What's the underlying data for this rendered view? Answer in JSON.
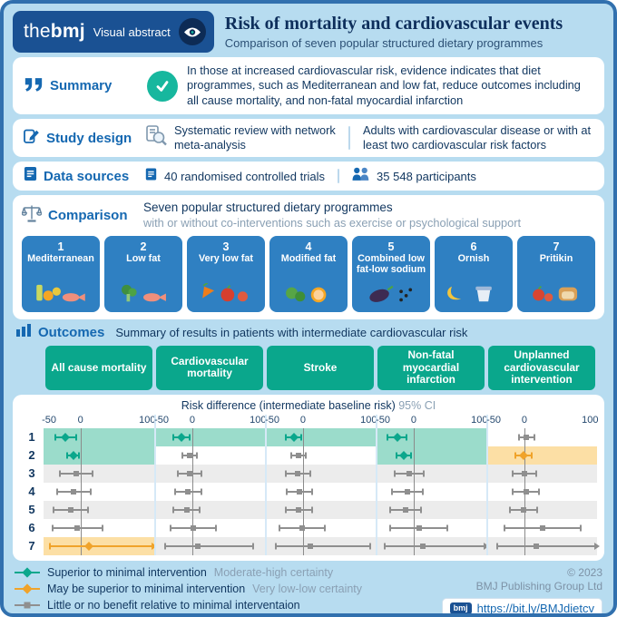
{
  "header": {
    "logo_the": "the",
    "logo_bmj": "bmj",
    "logo_label": "Visual abstract",
    "title": "Risk of mortality and cardiovascular events",
    "subtitle": "Comparison of seven popular structured dietary programmes"
  },
  "summary": {
    "label": "Summary",
    "text": "In those at increased cardiovascular risk, evidence indicates that diet programmes, such as Mediterranean and low fat, reduce outcomes including all cause mortality, and non-fatal myocardial infarction"
  },
  "study_design": {
    "label": "Study design",
    "method": "Systematic review with network meta-analysis",
    "population": "Adults with cardiovascular disease or with at least two cardiovascular risk factors"
  },
  "data_sources": {
    "label": "Data sources",
    "trials": "40 randomised controlled trials",
    "participants": "35 548 participants"
  },
  "comparison": {
    "label": "Comparison",
    "line1": "Seven popular structured dietary programmes",
    "line2": "with or without co-interventions such as exercise or psychological support",
    "diets": [
      {
        "num": "1",
        "name": "Mediterranean"
      },
      {
        "num": "2",
        "name": "Low fat"
      },
      {
        "num": "3",
        "name": "Very low fat"
      },
      {
        "num": "4",
        "name": "Modified fat"
      },
      {
        "num": "5",
        "name": "Combined low fat-low sodium"
      },
      {
        "num": "6",
        "name": "Ornish"
      },
      {
        "num": "7",
        "name": "Pritikin"
      }
    ]
  },
  "outcomes": {
    "label": "Outcomes",
    "subtitle": "Summary of results in patients with intermediate cardiovascular risk",
    "axis_title": "Risk difference (intermediate baseline risk)",
    "axis_ci": "95% CI"
  },
  "legend": [
    {
      "text": "Superior to minimal intervention",
      "certainty": "Moderate-high certainty"
    },
    {
      "text": "May be superior to minimal intervention",
      "certainty": "Very low-low certainty"
    },
    {
      "text": "Little or no benefit relative to minimal interventaion",
      "certainty": ""
    }
  ],
  "footer": {
    "copyright1": "© 2023",
    "copyright2": "BMJ Publishing Group Ltd",
    "link_logo": "bmj",
    "link": "https://bit.ly/BMJdietcv"
  },
  "colors": {
    "teal": "#0ba78c",
    "orange": "#f0a32a",
    "gray": "#8f8f8f",
    "highlight_teal": "#9bdccb",
    "highlight_orange": "#fcdfa5",
    "stripe": "#ececec",
    "header_blue": "#1a5193",
    "accent_blue": "#1568b1",
    "diet_card_blue": "#2f80c2",
    "chip_teal": "#0aa78c",
    "background_blue": "#b7dcf0"
  },
  "chart_data": {
    "type": "forest",
    "title": "Summary of results in patients with intermediate cardiovascular risk",
    "xlabel": "Risk difference (intermediate baseline risk), 95% CI",
    "xlim": [
      -50,
      100
    ],
    "ticks": [
      {
        "v": -50,
        "label": "-50"
      },
      {
        "v": 0,
        "label": "0"
      },
      {
        "v": 100,
        "label": "100"
      }
    ],
    "columns": [
      "All cause mortality",
      "Cardiovascular mortality",
      "Stroke",
      "Non-fatal myocardial infarction",
      "Unplanned cardiovascular intervention"
    ],
    "legend_types": {
      "superior": "Superior to minimal intervention (moderate-high certainty)",
      "maybe": "May be superior to minimal intervention (very low-low certainty)",
      "none": "Little or no benefit relative to minimal intervention"
    },
    "rows": [
      {
        "label": "1",
        "diet": "Mediterranean",
        "cells": [
          {
            "est": -20,
            "lo": -34,
            "hi": -6,
            "type": "superior",
            "bg": "teal"
          },
          {
            "est": -15,
            "lo": -26,
            "hi": -4,
            "type": "superior",
            "bg": "teal"
          },
          {
            "est": -13,
            "lo": -24,
            "hi": -2,
            "type": "superior",
            "bg": "teal"
          },
          {
            "est": -23,
            "lo": -36,
            "hi": -10,
            "type": "superior",
            "bg": "teal"
          },
          {
            "est": 3,
            "lo": -8,
            "hi": 14,
            "type": "none",
            "bg": "white"
          }
        ]
      },
      {
        "label": "2",
        "diet": "Low fat",
        "cells": [
          {
            "est": -10,
            "lo": -18,
            "hi": -2,
            "type": "superior",
            "bg": "teal"
          },
          {
            "est": -4,
            "lo": -14,
            "hi": 6,
            "type": "none",
            "bg": "white"
          },
          {
            "est": -6,
            "lo": -16,
            "hi": 4,
            "type": "none",
            "bg": "white"
          },
          {
            "est": -14,
            "lo": -24,
            "hi": -4,
            "type": "superior",
            "bg": "teal"
          },
          {
            "est": -1,
            "lo": -12,
            "hi": 10,
            "type": "maybe",
            "bg": "orange"
          }
        ]
      },
      {
        "label": "3",
        "diet": "Very low fat",
        "cells": [
          {
            "est": -6,
            "lo": -28,
            "hi": 16,
            "type": "none",
            "bg": "stripe"
          },
          {
            "est": -4,
            "lo": -20,
            "hi": 12,
            "type": "none",
            "bg": "stripe"
          },
          {
            "est": -7,
            "lo": -24,
            "hi": 10,
            "type": "none",
            "bg": "stripe"
          },
          {
            "est": -6,
            "lo": -26,
            "hi": 14,
            "type": "none",
            "bg": "stripe"
          },
          {
            "est": 0,
            "lo": -16,
            "hi": 16,
            "type": "none",
            "bg": "stripe"
          }
        ]
      },
      {
        "label": "4",
        "diet": "Modified fat",
        "cells": [
          {
            "est": -9,
            "lo": -32,
            "hi": 14,
            "type": "none",
            "bg": "white"
          },
          {
            "est": -6,
            "lo": -24,
            "hi": 12,
            "type": "none",
            "bg": "white"
          },
          {
            "est": -5,
            "lo": -22,
            "hi": 12,
            "type": "none",
            "bg": "white"
          },
          {
            "est": -9,
            "lo": -30,
            "hi": 12,
            "type": "none",
            "bg": "white"
          },
          {
            "est": 2,
            "lo": -16,
            "hi": 20,
            "type": "none",
            "bg": "white"
          }
        ]
      },
      {
        "label": "5",
        "diet": "Combined low fat-low sodium",
        "cells": [
          {
            "est": -13,
            "lo": -36,
            "hi": 10,
            "type": "none",
            "bg": "stripe"
          },
          {
            "est": -8,
            "lo": -26,
            "hi": 10,
            "type": "none",
            "bg": "stripe"
          },
          {
            "est": -6,
            "lo": -24,
            "hi": 12,
            "type": "none",
            "bg": "stripe"
          },
          {
            "est": -11,
            "lo": -32,
            "hi": 10,
            "type": "none",
            "bg": "stripe"
          },
          {
            "est": -1,
            "lo": -20,
            "hi": 18,
            "type": "none",
            "bg": "stripe"
          }
        ]
      },
      {
        "label": "6",
        "diet": "Ornish",
        "cells": [
          {
            "est": -4,
            "lo": -38,
            "hi": 30,
            "type": "none",
            "bg": "white"
          },
          {
            "est": 1,
            "lo": -30,
            "hi": 32,
            "type": "none",
            "bg": "white"
          },
          {
            "est": -1,
            "lo": -32,
            "hi": 30,
            "type": "none",
            "bg": "white"
          },
          {
            "est": 7,
            "lo": -32,
            "hi": 46,
            "type": "none",
            "bg": "white"
          },
          {
            "est": 25,
            "lo": -28,
            "hi": 78,
            "type": "none",
            "bg": "white"
          }
        ]
      },
      {
        "label": "7",
        "diet": "Pritikin",
        "cells": [
          {
            "est": 12,
            "lo": -42,
            "hi": 100,
            "type": "maybe",
            "bg": "orange",
            "arrow": true
          },
          {
            "est": 8,
            "lo": -38,
            "hi": 84,
            "type": "none",
            "bg": "stripe"
          },
          {
            "est": 10,
            "lo": -38,
            "hi": 92,
            "type": "none",
            "bg": "stripe"
          },
          {
            "est": 12,
            "lo": -40,
            "hi": 100,
            "type": "none",
            "bg": "stripe",
            "arrow": true
          },
          {
            "est": 16,
            "lo": -38,
            "hi": 100,
            "type": "none",
            "bg": "stripe",
            "arrow": true
          }
        ]
      }
    ]
  }
}
